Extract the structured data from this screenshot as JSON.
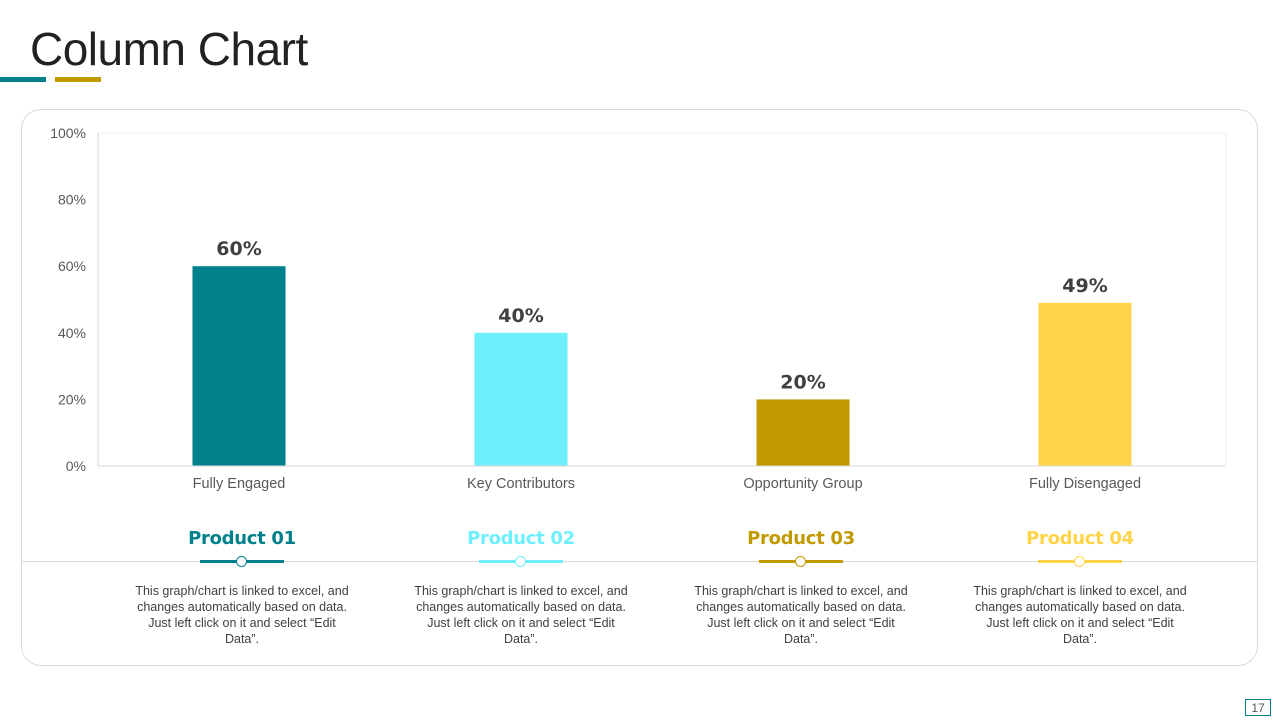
{
  "title": "Column Chart",
  "colors": {
    "teal": "#00808A",
    "cyan": "#6EF0FC",
    "gold": "#C19900",
    "yellow": "#FFD448",
    "accent_1": "#00808A",
    "accent_2": "#C19900"
  },
  "chart_data": {
    "type": "bar",
    "categories": [
      "Fully Engaged",
      "Key Contributors",
      "Opportunity Group",
      "Fully Disengaged"
    ],
    "values": [
      60,
      40,
      20,
      49
    ],
    "data_labels": [
      "60%",
      "40%",
      "20%",
      "49%"
    ],
    "bar_colors": [
      "#00808A",
      "#6EF0FC",
      "#C19900",
      "#FFD448"
    ],
    "ylim": [
      0,
      100
    ],
    "yticks": [
      0,
      20,
      40,
      60,
      80,
      100
    ],
    "ytick_labels": [
      "0%",
      "20%",
      "40%",
      "60%",
      "80%",
      "100%"
    ],
    "title": "",
    "xlabel": "",
    "ylabel": "",
    "grid": false,
    "legend": "none"
  },
  "products": [
    {
      "title": "Product 01",
      "color": "#00808A",
      "description": "This graph/chart is linked to excel, and changes automatically based on data. Just left click on it and select “Edit Data”."
    },
    {
      "title": "Product 02",
      "color": "#6EF0FC",
      "description": "This graph/chart is linked to excel, and changes automatically based on data. Just left click on it and select “Edit Data”."
    },
    {
      "title": "Product 03",
      "color": "#C19900",
      "description": "This graph/chart is linked to excel, and changes automatically based on data. Just left click on it and select “Edit Data”."
    },
    {
      "title": "Product 04",
      "color": "#FFD448",
      "description": "This graph/chart is linked to excel, and changes automatically based on data. Just left click on it and select “Edit Data”."
    }
  ],
  "page_number": "17"
}
